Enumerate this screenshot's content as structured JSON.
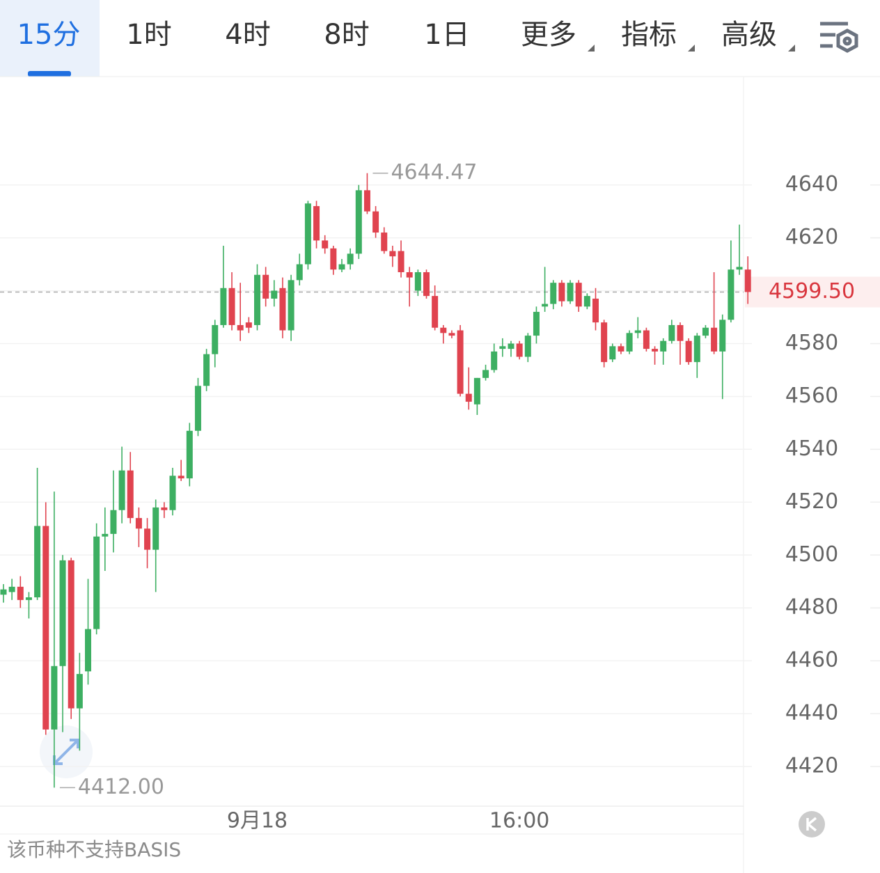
{
  "tabs": [
    "15分",
    "1时",
    "4时",
    "8时",
    "1日",
    "更多",
    "指标",
    "高级"
  ],
  "footer": "该币种不支持BASIS",
  "chart_data": {
    "type": "candlestick",
    "up_color": "#3daf62",
    "down_color": "#e0434f",
    "ylim": [
      4405,
      4681
    ],
    "yticks": [
      4420,
      4440,
      4460,
      4480,
      4500,
      4520,
      4540,
      4560,
      4580,
      4600,
      4620,
      4640
    ],
    "grid": true,
    "annotations": [
      {
        "index": 43,
        "value": 4644.47,
        "label": "4644.47"
      },
      {
        "index": 6,
        "value": 4412,
        "label": "4412.00"
      }
    ],
    "last_price": {
      "value": 4599.5,
      "label": "4599.50"
    },
    "categories": [
      null,
      null,
      null,
      null,
      null,
      null,
      null,
      null,
      null,
      null,
      null,
      null,
      null,
      null,
      null,
      null,
      null,
      null,
      null,
      null,
      null,
      null,
      null,
      null,
      null,
      null,
      null,
      null,
      null,
      null,
      "9月18",
      null,
      null,
      null,
      null,
      null,
      null,
      null,
      null,
      null,
      null,
      null,
      null,
      null,
      null,
      null,
      null,
      null,
      null,
      null,
      null,
      null,
      null,
      null,
      null,
      null,
      null,
      null,
      null,
      null,
      null,
      "16:00",
      null,
      null,
      null,
      null,
      null,
      null,
      null,
      null,
      null,
      null,
      null,
      null,
      null,
      null,
      null,
      null,
      null,
      null,
      null,
      null,
      null,
      null,
      null,
      null,
      null,
      null,
      null
    ],
    "open": [
      4485,
      4486,
      4488,
      4483,
      4484,
      4511,
      4434,
      4458,
      4498,
      4442,
      4456,
      4472,
      4507,
      4508,
      4517,
      4532,
      4514,
      4510,
      4502,
      4518,
      4517,
      4530,
      4529,
      4547,
      4564,
      4576,
      4587,
      4601,
      4587,
      4588,
      4587,
      4606,
      4597,
      4601,
      4585,
      4604,
      4610,
      4632,
      4619,
      4616,
      4608,
      4610,
      4614,
      4638,
      4630,
      4622,
      4615,
      4615,
      4607,
      4600,
      4607,
      4598,
      4586,
      4584,
      4585,
      4561,
      4557,
      4567,
      4570,
      4578,
      4578,
      4580,
      4575,
      4583,
      4594,
      4595,
      4603,
      4596,
      4603,
      4594,
      4597,
      4588,
      4574,
      4579,
      4577,
      4584,
      4585,
      4578,
      4577,
      4581,
      4587,
      4581,
      4573,
      4583,
      4586,
      4577,
      4589,
      4608,
      4608
    ],
    "high": [
      4489,
      4491,
      4492,
      4486,
      4533,
      4520,
      4524,
      4500,
      4499,
      4463,
      4491,
      4512,
      4518,
      4532,
      4541,
      4539,
      4518,
      4514,
      4521,
      4520,
      4533,
      4536,
      4550,
      4567,
      4578,
      4589,
      4617,
      4607,
      4603,
      4590,
      4610,
      4609,
      4604,
      4605,
      4606,
      4614,
      4634,
      4634,
      4621,
      4617,
      4612,
      4616,
      4640,
      4644.47,
      4632,
      4624,
      4617,
      4619,
      4609,
      4608,
      4608,
      4602,
      4587,
      4585,
      4587,
      4571,
      4567,
      4572,
      4580,
      4582,
      4581,
      4581,
      4584,
      4594,
      4609,
      4604,
      4604,
      4604,
      4604,
      4599,
      4601,
      4589,
      4580,
      4580,
      4585,
      4590,
      4586,
      4579,
      4582,
      4589,
      4588,
      4582,
      4584,
      4587,
      4607,
      4591,
      4619,
      4625,
      4613
    ],
    "low": [
      4482,
      4483,
      4480,
      4476,
      4483,
      4432,
      4412,
      4433,
      4438,
      4426,
      4451,
      4470,
      4494,
      4501,
      4512,
      4512,
      4503,
      4495,
      4486,
      4514,
      4515,
      4528,
      4526,
      4545,
      4562,
      4571,
      4586,
      4585,
      4581,
      4584,
      4585,
      4594,
      4594,
      4582,
      4581,
      4602,
      4608,
      4616,
      4614,
      4606,
      4607,
      4608,
      4612,
      4629,
      4620,
      4614,
      4609,
      4605,
      4594,
      4598,
      4597,
      4585,
      4580,
      4582,
      4560,
      4555,
      4553,
      4566,
      4569,
      4575,
      4575,
      4574,
      4573,
      4580,
      4592,
      4593,
      4594,
      4595,
      4592,
      4593,
      4585,
      4571,
      4573,
      4576,
      4576,
      4582,
      4577,
      4572,
      4572,
      4580,
      4572,
      4572,
      4567,
      4582,
      4576,
      4559,
      4588,
      4606,
      4595
    ],
    "close": [
      4487,
      4488,
      4483,
      4484,
      4511,
      4434,
      4458,
      4498,
      4442,
      4455,
      4472,
      4507,
      4508,
      4517,
      4532,
      4514,
      4510,
      4502,
      4518,
      4517,
      4530,
      4529,
      4547,
      4564,
      4576,
      4587,
      4601,
      4587,
      4585,
      4586,
      4606,
      4597,
      4600,
      4585,
      4604,
      4610,
      4633,
      4619,
      4616,
      4608,
      4610,
      4614,
      4638,
      4630,
      4622,
      4615,
      4613,
      4607,
      4605,
      4607,
      4598,
      4586,
      4584,
      4583,
      4561,
      4558,
      4567,
      4570,
      4577,
      4579,
      4580,
      4575,
      4583,
      4592,
      4595,
      4603,
      4596,
      4603,
      4594,
      4598,
      4588,
      4573,
      4579,
      4577,
      4584,
      4585,
      4578,
      4577,
      4581,
      4587,
      4581,
      4573,
      4583,
      4586,
      4577,
      4589,
      4608,
      4609,
      4599.5
    ]
  }
}
